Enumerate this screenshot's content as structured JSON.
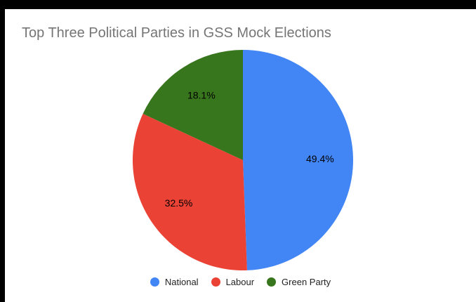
{
  "chart_data": {
    "type": "pie",
    "title": "Top Three Political Parties in GSS Mock Elections",
    "categories": [
      "National",
      "Labour",
      "Green Party"
    ],
    "values": [
      49.4,
      32.5,
      18.1
    ],
    "labels": [
      "49.4%",
      "32.5%",
      "18.1%"
    ],
    "colors": [
      "#4285f4",
      "#ea4335",
      "#38761d"
    ],
    "legend_position": "bottom"
  }
}
